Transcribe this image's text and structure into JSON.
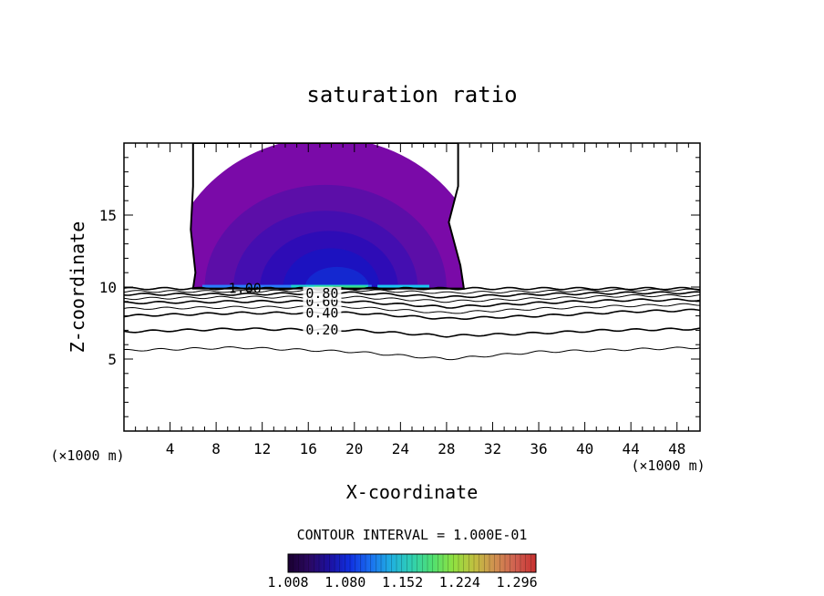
{
  "chart_data": {
    "type": "contour",
    "title": "saturation ratio",
    "xlabel": "X-coordinate",
    "ylabel": "Z-coordinate",
    "x_units": "(×1000 m)",
    "y_units": "(×1000 m)",
    "xlim": [
      0,
      50
    ],
    "ylim": [
      0,
      20
    ],
    "x_ticks": [
      4,
      8,
      12,
      16,
      20,
      24,
      28,
      32,
      36,
      40,
      44,
      48
    ],
    "y_ticks": [
      5,
      10,
      15
    ],
    "contour_interval_label": "CONTOUR INTERVAL = 1.000E-01",
    "contour_levels": [
      {
        "level": 0.1,
        "label": "",
        "z_at_x": [
          [
            0,
            5.6
          ],
          [
            10,
            5.8
          ],
          [
            20,
            5.5
          ],
          [
            28,
            5.0
          ],
          [
            36,
            5.5
          ],
          [
            50,
            5.8
          ]
        ]
      },
      {
        "level": 0.2,
        "label": "0.20",
        "z_at_x": [
          [
            0,
            6.9
          ],
          [
            10,
            7.1
          ],
          [
            20,
            7.0
          ],
          [
            28,
            6.6
          ],
          [
            36,
            6.8
          ],
          [
            42,
            7.0
          ],
          [
            50,
            7.1
          ]
        ]
      },
      {
        "level": 0.4,
        "label": "0.40",
        "z_at_x": [
          [
            0,
            8.0
          ],
          [
            10,
            8.2
          ],
          [
            20,
            8.2
          ],
          [
            28,
            7.8
          ],
          [
            36,
            8.0
          ],
          [
            44,
            8.3
          ],
          [
            50,
            8.4
          ]
        ]
      },
      {
        "level": 0.5,
        "label": "",
        "z_at_x": [
          [
            0,
            8.5
          ],
          [
            10,
            8.6
          ],
          [
            20,
            8.6
          ],
          [
            28,
            8.2
          ],
          [
            36,
            8.5
          ],
          [
            44,
            8.7
          ],
          [
            50,
            8.8
          ]
        ]
      },
      {
        "level": 0.6,
        "label": "0.60",
        "z_at_x": [
          [
            0,
            8.9
          ],
          [
            10,
            9.0
          ],
          [
            20,
            9.0
          ],
          [
            28,
            8.6
          ],
          [
            36,
            8.9
          ],
          [
            44,
            9.1
          ],
          [
            50,
            9.1
          ]
        ]
      },
      {
        "level": 0.7,
        "label": "",
        "z_at_x": [
          [
            0,
            9.2
          ],
          [
            10,
            9.3
          ],
          [
            20,
            9.3
          ],
          [
            28,
            9.0
          ],
          [
            36,
            9.2
          ],
          [
            44,
            9.4
          ],
          [
            50,
            9.4
          ]
        ]
      },
      {
        "level": 0.8,
        "label": "0.80",
        "z_at_x": [
          [
            0,
            9.5
          ],
          [
            10,
            9.5
          ],
          [
            20,
            9.6
          ],
          [
            28,
            9.3
          ],
          [
            36,
            9.5
          ],
          [
            44,
            9.6
          ],
          [
            50,
            9.6
          ]
        ]
      },
      {
        "level": 0.9,
        "label": "",
        "z_at_x": [
          [
            0,
            9.7
          ],
          [
            10,
            9.7
          ],
          [
            20,
            9.8
          ],
          [
            28,
            9.6
          ],
          [
            36,
            9.7
          ],
          [
            44,
            9.8
          ],
          [
            50,
            9.8
          ]
        ]
      },
      {
        "level": 1.0,
        "label": "1.00",
        "z_at_x": [
          [
            0,
            9.9
          ],
          [
            50,
            9.9
          ]
        ]
      }
    ],
    "supersaturated_region": {
      "x_left_edge": [
        [
          6.0,
          20.0
        ],
        [
          6.0,
          17.0
        ],
        [
          5.8,
          14.0
        ],
        [
          6.2,
          11.0
        ],
        [
          6.0,
          9.9
        ]
      ],
      "x_right_edge": [
        [
          29.0,
          20.0
        ],
        [
          29.0,
          17.0
        ],
        [
          28.2,
          14.5
        ],
        [
          29.2,
          11.5
        ],
        [
          29.5,
          9.9
        ]
      ],
      "base_z": 9.9,
      "shells": [
        {
          "value": 1.008,
          "color": "#7a0aa8",
          "cx": 17.5,
          "cz": 9.9,
          "rx": 14.0,
          "rz": 10.5
        },
        {
          "value": 1.02,
          "color": "#5c0ea8",
          "cx": 17.5,
          "cz": 9.9,
          "rx": 10.5,
          "rz": 7.2
        },
        {
          "value": 1.04,
          "color": "#440eb0",
          "cx": 17.5,
          "cz": 9.9,
          "rx": 8.0,
          "rz": 5.4
        },
        {
          "value": 1.06,
          "color": "#2e0cb6",
          "cx": 17.8,
          "cz": 9.9,
          "rx": 6.0,
          "rz": 4.0
        },
        {
          "value": 1.08,
          "color": "#1c12c0",
          "cx": 18.0,
          "cz": 9.9,
          "rx": 4.2,
          "rz": 2.8
        },
        {
          "value": 1.1,
          "color": "#1428d0",
          "cx": 18.5,
          "cz": 9.9,
          "rx": 2.8,
          "rz": 1.5
        }
      ],
      "surface_band": [
        {
          "x0": 6.8,
          "x1": 21.5,
          "color": "#2a7cff"
        },
        {
          "x0": 14.5,
          "x1": 21.2,
          "color": "#19d4d0"
        },
        {
          "x0": 16.5,
          "x1": 21.0,
          "color": "#39e08a"
        },
        {
          "x0": 22.0,
          "x1": 26.5,
          "color": "#19c8f0"
        }
      ]
    },
    "colorbar": {
      "tick_labels": [
        "1.008",
        "1.080",
        "1.152",
        "1.224",
        "1.296"
      ],
      "range": [
        1.008,
        1.32
      ],
      "colors": [
        "#1a0030",
        "#2a0860",
        "#1c10a0",
        "#1030e0",
        "#1a70f0",
        "#20b0e0",
        "#30d0b0",
        "#50e070",
        "#90e040",
        "#c0c040",
        "#d09050",
        "#d06050",
        "#c83030"
      ]
    }
  }
}
